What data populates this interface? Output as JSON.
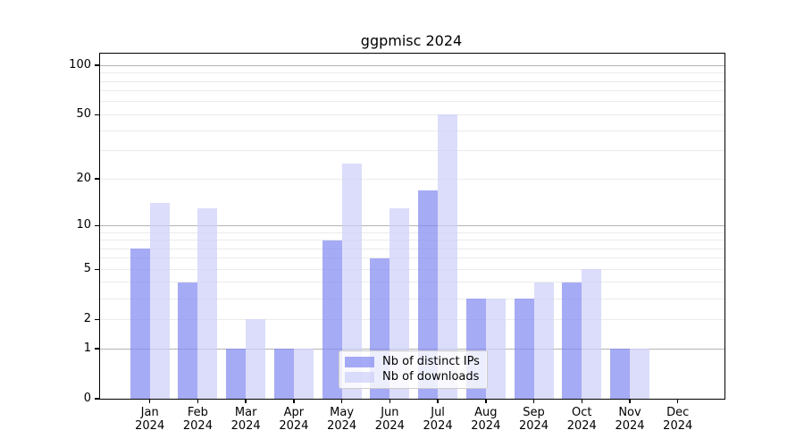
{
  "title": "ggpmisc 2024",
  "legend": {
    "items": [
      {
        "label": "Nb of distinct IPs",
        "series": "ips"
      },
      {
        "label": "Nb of downloads",
        "series": "downloads"
      }
    ]
  },
  "colors": {
    "ips": "rgba(131,139,241,0.72)",
    "downloads": "rgba(205,208,248,0.72)",
    "grid_major": "#b4b4b4",
    "grid_minor": "#ebebeb",
    "spine": "#000000"
  },
  "chart_data": {
    "type": "bar",
    "title": "ggpmisc 2024",
    "categories": [
      "Jan 2024",
      "Feb 2024",
      "Mar 2024",
      "Apr 2024",
      "May 2024",
      "Jun 2024",
      "Jul 2024",
      "Aug 2024",
      "Sep 2024",
      "Oct 2024",
      "Nov 2024",
      "Dec 2024"
    ],
    "series": [
      {
        "name": "Nb of distinct IPs",
        "values": [
          7,
          4,
          1,
          1,
          8,
          6,
          17,
          3,
          3,
          4,
          1,
          0
        ]
      },
      {
        "name": "Nb of downloads",
        "values": [
          14,
          13,
          2,
          1,
          25,
          13,
          50,
          3,
          4,
          5,
          1,
          0
        ]
      }
    ],
    "xlabel": "",
    "ylabel": "",
    "yscale": "log1p",
    "ylim": [
      0,
      117
    ],
    "y_ticks": [
      0,
      1,
      2,
      5,
      10,
      20,
      50,
      100
    ],
    "y_grid_major": [
      1,
      10,
      100
    ],
    "y_grid_minor": [
      2,
      3,
      4,
      5,
      6,
      7,
      8,
      9,
      20,
      30,
      40,
      50,
      60,
      70,
      80,
      90
    ],
    "grid": "on",
    "legend_position": "lower center-left"
  }
}
